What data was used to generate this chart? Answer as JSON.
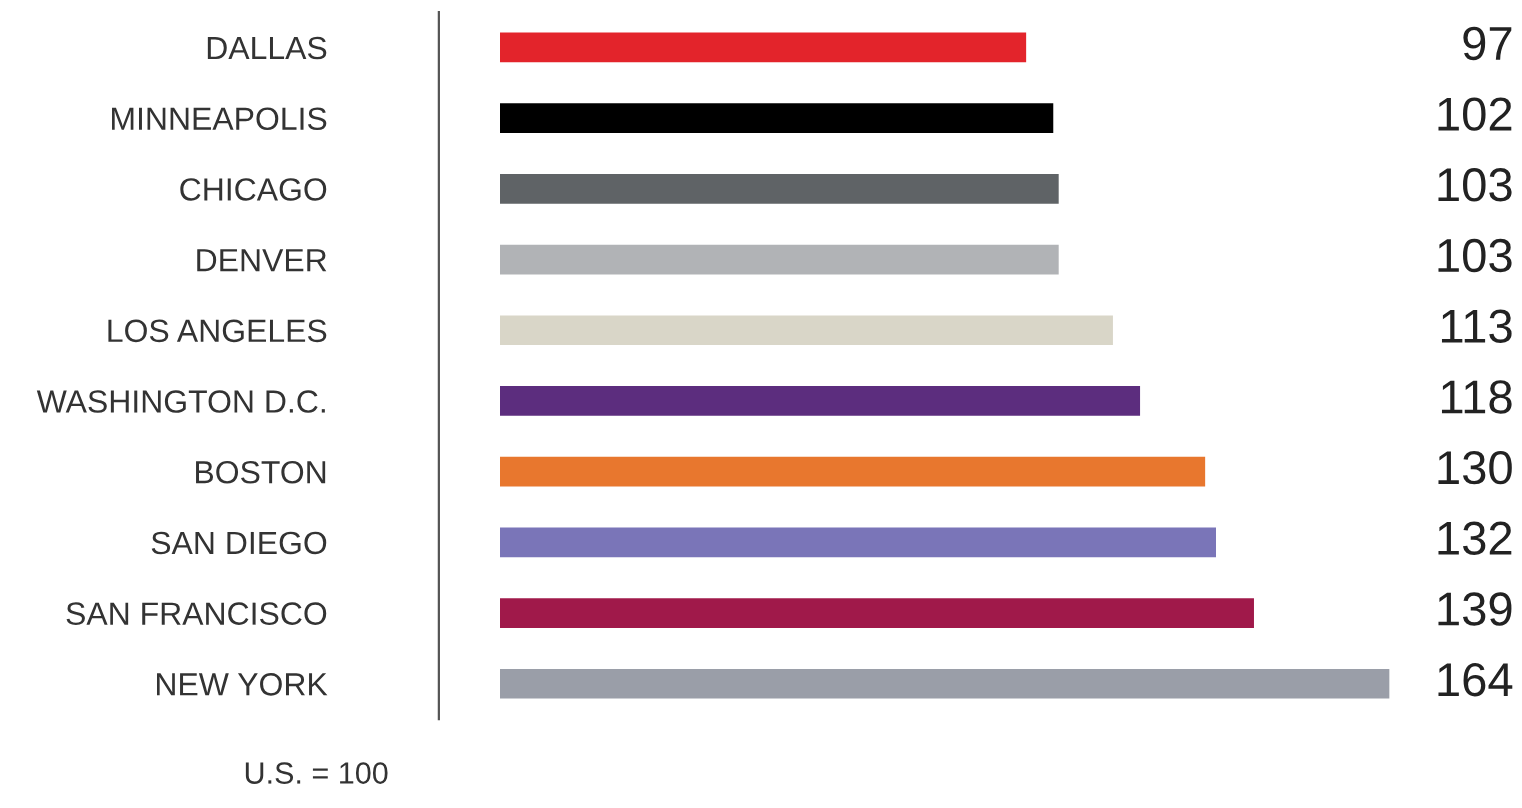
{
  "chart_data": {
    "type": "bar",
    "orientation": "horizontal",
    "data_labels": true,
    "categories": [
      "DALLAS",
      "MINNEAPOLIS",
      "CHICAGO",
      "DENVER",
      "LOS ANGELES",
      "WASHINGTON D.C.",
      "BOSTON",
      "SAN DIEGO",
      "SAN FRANCISCO",
      "NEW YORK"
    ],
    "values": [
      97,
      102,
      103,
      103,
      113,
      118,
      130,
      132,
      139,
      164
    ],
    "colors": [
      "#e3242b",
      "#000000",
      "#5f6366",
      "#b1b3b6",
      "#d9d6c8",
      "#5c2d7e",
      "#e8772e",
      "#7a75b8",
      "#a0194a",
      "#9a9ea8"
    ],
    "annotations": [
      "U.S. = 100"
    ],
    "grid": false,
    "legend": false
  }
}
